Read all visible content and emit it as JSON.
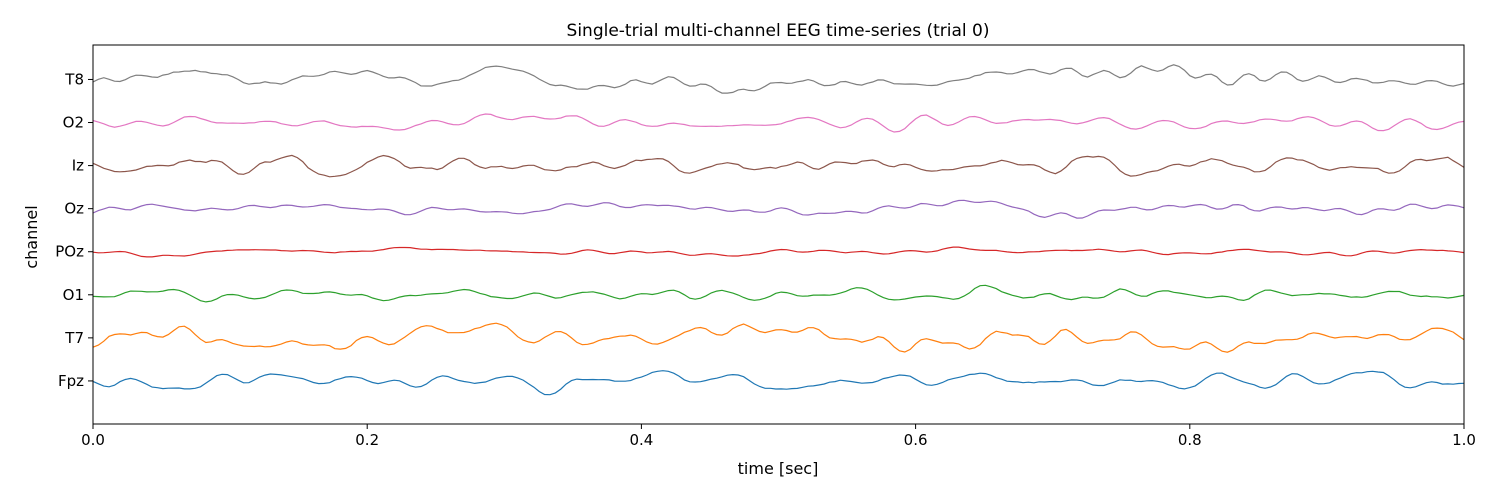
{
  "chart_data": {
    "type": "line",
    "title": "Single-trial multi-channel EEG time-series (trial 0)",
    "xlabel": "time [sec]",
    "ylabel": "channel",
    "xlim": [
      0.0,
      1.0
    ],
    "xticks": [
      "0.0",
      "0.2",
      "0.4",
      "0.6",
      "0.8",
      "1.0"
    ],
    "xtick_values": [
      0.0,
      0.2,
      0.4,
      0.6,
      0.8,
      1.0
    ],
    "channels": [
      "Fpz",
      "T7",
      "O1",
      "POz",
      "Oz",
      "Iz",
      "O2",
      "T8"
    ],
    "grid": false,
    "legend": "none",
    "series": [
      {
        "name": "Fpz",
        "color": "#1f77b4",
        "amplitude": 0.32,
        "seed": 11
      },
      {
        "name": "T7",
        "color": "#ff7f0e",
        "amplitude": 0.34,
        "seed": 23
      },
      {
        "name": "O1",
        "color": "#2ca02c",
        "amplitude": 0.22,
        "seed": 37
      },
      {
        "name": "POz",
        "color": "#d62728",
        "amplitude": 0.12,
        "seed": 41
      },
      {
        "name": "Oz",
        "color": "#9467bd",
        "amplitude": 0.22,
        "seed": 53
      },
      {
        "name": "Iz",
        "color": "#8c564b",
        "amplitude": 0.26,
        "seed": 67
      },
      {
        "name": "O2",
        "color": "#e377c2",
        "amplitude": 0.22,
        "seed": 71
      },
      {
        "name": "T8",
        "color": "#7f7f7f",
        "amplitude": 0.34,
        "seed": 89
      }
    ]
  }
}
